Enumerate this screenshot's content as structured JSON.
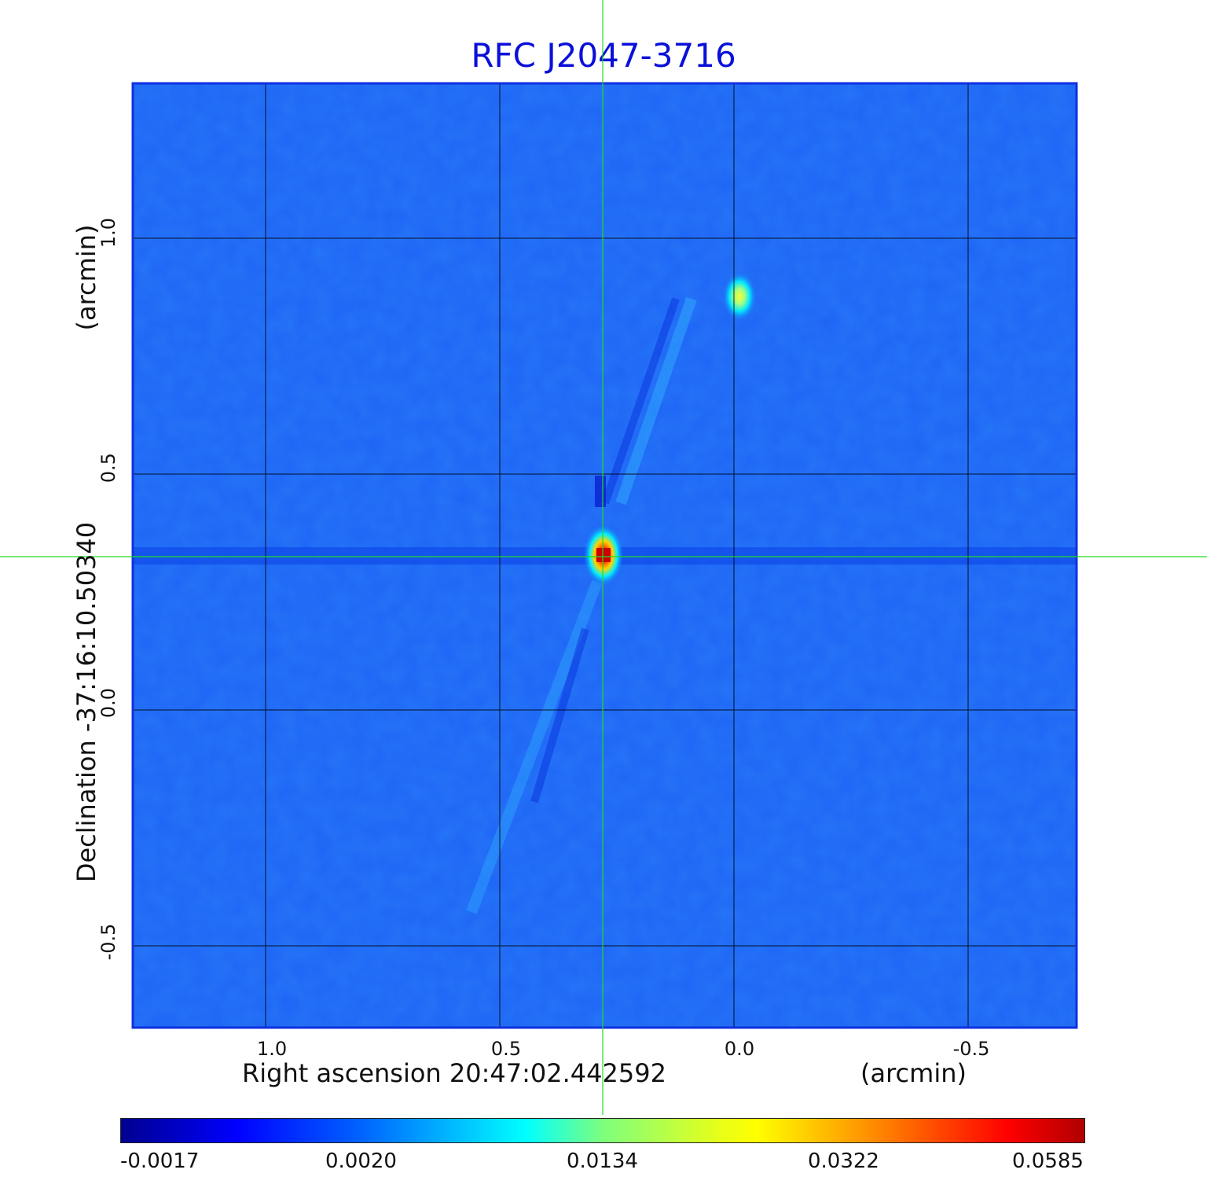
{
  "title": "RFC J2047-3716",
  "x_axis": {
    "label_main": "Right ascension  20:47:02.442592",
    "label_unit": "(arcmin)",
    "ticks": [
      "1.0",
      "0.5",
      "0.0",
      "-0.5"
    ]
  },
  "y_axis": {
    "label_main": "Declination  -37:16:10.50340",
    "label_unit": "(arcmin)",
    "ticks": [
      "1.0",
      "0.5",
      "0.0",
      "-0.5"
    ]
  },
  "colorbar": {
    "ticks": [
      "-0.0017",
      "0.0020",
      "0.0134",
      "0.0322",
      "0.0585"
    ]
  },
  "colors": {
    "title": "#0a10d8",
    "background_field": "#1e64f5",
    "crosshair": "#22dd22",
    "grid": "#000000",
    "peak": "#cc0000"
  },
  "image_features": {
    "primary_source": {
      "ra_offset_arcmin": 0.28,
      "dec_offset_arcmin": 0.33,
      "color": "red"
    },
    "secondary_source": {
      "ra_offset_arcmin": -0.02,
      "dec_offset_arcmin": 0.88,
      "color": "yellow"
    }
  }
}
